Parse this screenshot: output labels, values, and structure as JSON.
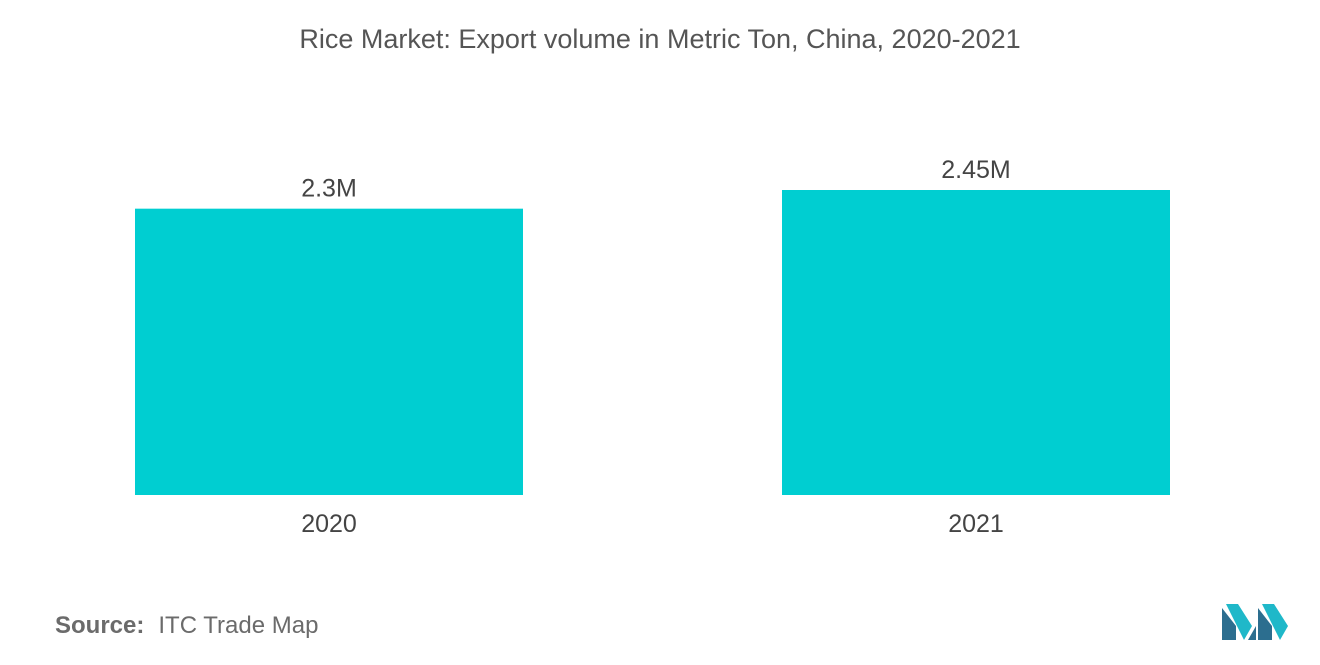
{
  "chart_data": {
    "type": "bar",
    "title": "Rice Market: Export volume in Metric Ton, China, 2020-2021",
    "categories": [
      "2020",
      "2021"
    ],
    "values": [
      2.3,
      2.45
    ],
    "data_labels": [
      "2.3M",
      "2.45M"
    ],
    "unit": "M",
    "xlabel": "",
    "ylabel": "",
    "ylim": [
      0,
      2.45
    ],
    "grid": false,
    "legend": "none",
    "bar_color": "#00ced1"
  },
  "footer": {
    "source_label": "Source:",
    "source_value": "ITC Trade Map"
  },
  "brand": {
    "logo_icon": "mordor-intelligence-logo-icon",
    "colors": [
      "#2c6e8f",
      "#1fb8c9"
    ]
  }
}
